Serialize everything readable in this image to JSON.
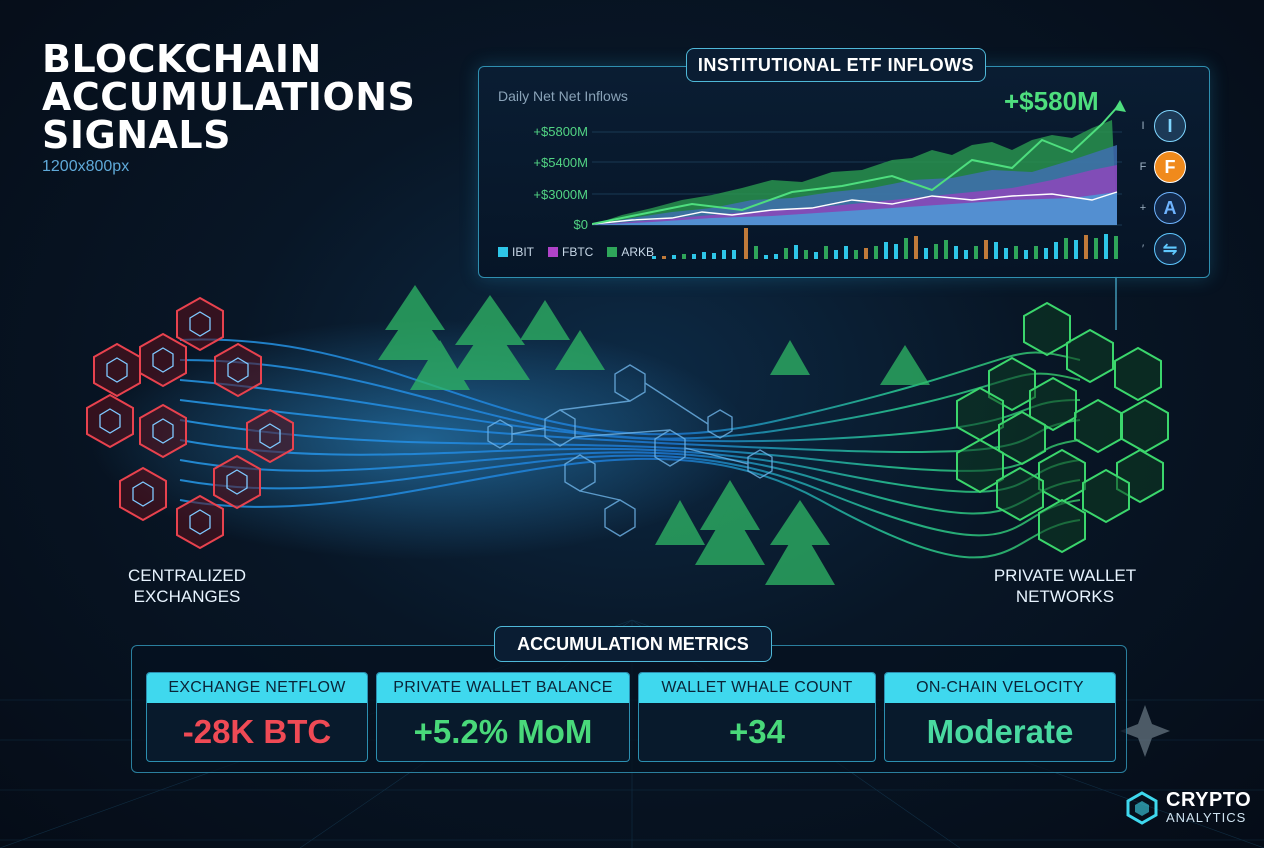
{
  "header": {
    "title_line1": "BLOCKCHAIN",
    "title_line2": "ACCUMULATIONS",
    "title_line3": "SIGNALS",
    "subtitle": "1200x800px"
  },
  "etf_panel": {
    "title": "INSTITUTIONAL ETF INFLOWS",
    "subtitle": "Daily Net Net Inflows",
    "total": "+$580M",
    "y_labels": [
      "+$5800M",
      "+$5400M",
      "+$3000M",
      "$0"
    ],
    "legend": [
      {
        "label": "IBIT",
        "color": "#2ec6e8"
      },
      {
        "label": "FBTC",
        "color": "#b043c9"
      },
      {
        "label": "ARKB",
        "color": "#2fa65a"
      }
    ],
    "providers": [
      {
        "tag": "I",
        "glyph": "I",
        "icon": "ishares-icon",
        "bg": "#1c3a57",
        "fg": "#7fd6ff"
      },
      {
        "tag": "F",
        "glyph": "F",
        "icon": "fidelity-icon",
        "bg": "#f08a1c",
        "fg": "#ffffff"
      },
      {
        "tag": "+",
        "glyph": "A",
        "icon": "ark-icon",
        "bg": "#12294a",
        "fg": "#6fb4ff"
      },
      {
        "tag": "′",
        "glyph": "⇋",
        "icon": "exchange-icon",
        "bg": "#132a48",
        "fg": "#5fc8ff"
      }
    ]
  },
  "flow": {
    "left_label_line1": "CENTRALIZED",
    "left_label_line2": "EXCHANGES",
    "right_label_line1": "PRIVATE WALLET",
    "right_label_line2": "NETWORKS"
  },
  "metrics": {
    "title": "ACCUMULATION METRICS",
    "cards": [
      {
        "label": "EXCHANGE NETFLOW",
        "value": "-28K BTC",
        "color": "#ef4a55"
      },
      {
        "label": "PRIVATE WALLET BALANCE",
        "value": "+5.2% MoM",
        "color": "#49d97a"
      },
      {
        "label": "WALLET WHALE COUNT",
        "value": "+34",
        "color": "#49d97a"
      },
      {
        "label": "ON-CHAIN VELOCITY",
        "value": "Moderate",
        "color": "#49d9a0"
      }
    ]
  },
  "logo": {
    "line1": "CRYPTO",
    "line2": "ANALYTICS"
  },
  "colors": {
    "accent": "#3fd8ee",
    "exchange": "#e8424e",
    "wallet": "#3bd66c"
  }
}
